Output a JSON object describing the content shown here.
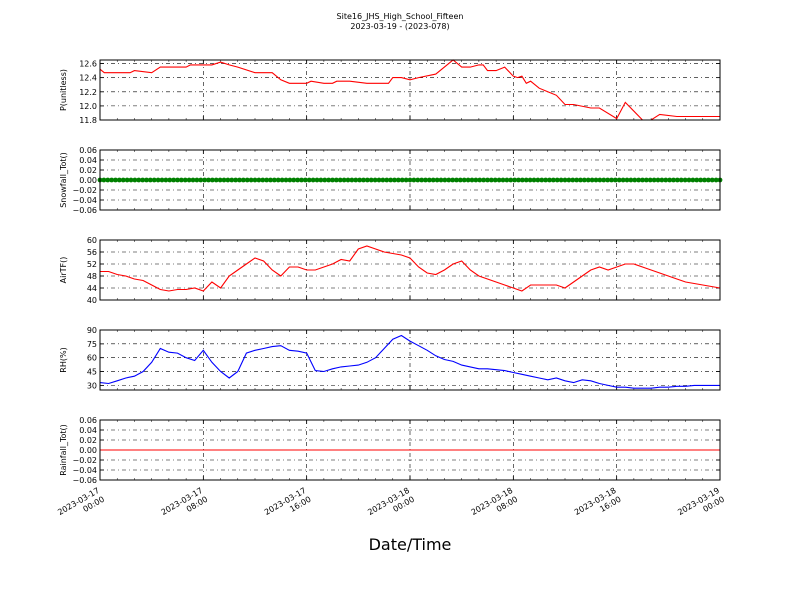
{
  "figure": {
    "title_line1": "Site16_JHS_High_School_Fifteen",
    "title_line2": "2023-03-19 - (2023-078)",
    "xlabel": "Date/Time"
  },
  "colors": {
    "red": "#ff0000",
    "green": "#008000",
    "blue": "#0000ff",
    "axis": "#000000"
  },
  "chart_data": [
    {
      "type": "line",
      "ylabel": "P(unitless)",
      "color": "#ff0000",
      "ylim": [
        11.8,
        12.65
      ],
      "yticks": [
        11.8,
        12.0,
        12.2,
        12.4,
        12.6
      ],
      "ytick_labels": [
        "11.8",
        "12.0",
        "12.2",
        "12.4",
        "12.6"
      ],
      "x": [
        0,
        0.5,
        3.5,
        4,
        6,
        7,
        10,
        10.5,
        11.5,
        12,
        13,
        14,
        15,
        16,
        18,
        20,
        21,
        22,
        24,
        24.5,
        26,
        27,
        27.5,
        28,
        29,
        31,
        32,
        33.5,
        34,
        35,
        36,
        37,
        39,
        40,
        41,
        42,
        43,
        44,
        44.5,
        45,
        46,
        47,
        48,
        48.5,
        49,
        49.5,
        50,
        51,
        52,
        53,
        54,
        55,
        57,
        58,
        60,
        61,
        63,
        64,
        65,
        67,
        68,
        69,
        70,
        71,
        72
      ],
      "y": [
        12.52,
        12.47,
        12.47,
        12.5,
        12.47,
        12.55,
        12.55,
        12.58,
        12.58,
        12.58,
        12.58,
        12.62,
        12.58,
        12.55,
        12.47,
        12.47,
        12.37,
        12.32,
        12.32,
        12.35,
        12.32,
        12.32,
        12.35,
        12.35,
        12.35,
        12.32,
        12.32,
        12.32,
        12.4,
        12.4,
        12.37,
        12.4,
        12.45,
        12.55,
        12.65,
        12.55,
        12.55,
        12.58,
        12.58,
        12.5,
        12.5,
        12.55,
        12.42,
        12.4,
        12.42,
        12.32,
        12.35,
        12.25,
        12.2,
        12.15,
        12.02,
        12.02,
        11.97,
        11.97,
        11.82,
        12.05,
        11.8,
        11.8,
        11.88,
        11.85,
        11.85,
        11.85,
        11.85,
        11.85,
        11.85
      ]
    },
    {
      "type": "line",
      "ylabel": "Snowfall_Tot()",
      "color": "#008000",
      "marker": "dot",
      "ylim": [
        -0.06,
        0.06
      ],
      "yticks": [
        -0.06,
        -0.04,
        -0.02,
        0.0,
        0.02,
        0.04,
        0.06
      ],
      "ytick_labels": [
        "−0.06",
        "−0.04",
        "−0.02",
        "0.00",
        "0.02",
        "0.04",
        "0.06"
      ],
      "x": [
        0,
        72
      ],
      "y": [
        0,
        0
      ]
    },
    {
      "type": "line",
      "ylabel": "AirTF()",
      "color": "#ff0000",
      "ylim": [
        40,
        60
      ],
      "yticks": [
        40,
        44,
        48,
        52,
        56,
        60
      ],
      "ytick_labels": [
        "40",
        "44",
        "48",
        "52",
        "56",
        "60"
      ],
      "x": [
        0,
        1,
        2,
        3,
        4,
        5,
        6,
        7,
        8,
        9,
        10,
        11,
        12,
        13,
        14,
        15,
        16,
        17,
        18,
        19,
        20,
        21,
        22,
        23,
        24,
        25,
        26,
        27,
        28,
        29,
        30,
        31,
        32,
        33,
        34,
        35,
        36,
        37,
        38,
        39,
        40,
        41,
        42,
        43,
        44,
        45,
        46,
        47,
        48,
        49,
        50,
        51,
        52,
        53,
        54,
        55,
        56,
        57,
        58,
        59,
        60,
        61,
        62,
        63,
        64,
        65,
        66,
        67,
        68,
        69,
        70,
        71,
        72
      ],
      "y": [
        49.5,
        49.5,
        48.5,
        48,
        47,
        46.5,
        45,
        43.5,
        43,
        43.5,
        43.5,
        44,
        43,
        46,
        44,
        48,
        50,
        52,
        54,
        53,
        50,
        48,
        51,
        51,
        50,
        50,
        51,
        52,
        53.5,
        53,
        57,
        58,
        57,
        56,
        55.5,
        55,
        54,
        51,
        49,
        48.5,
        50,
        52,
        53,
        50,
        48,
        47,
        46,
        45,
        44,
        43,
        45,
        45,
        45,
        45,
        44,
        46,
        48,
        50,
        51,
        50,
        51,
        52,
        52,
        51,
        50,
        49,
        48,
        47,
        46,
        45.5,
        45,
        44.5,
        44
      ]
    },
    {
      "type": "line",
      "ylabel": "RH(%)",
      "color": "#0000ff",
      "ylim": [
        25,
        90
      ],
      "yticks": [
        30,
        45,
        60,
        75,
        90
      ],
      "ytick_labels": [
        "30",
        "45",
        "60",
        "75",
        "90"
      ],
      "x": [
        0,
        1,
        2,
        3,
        4,
        5,
        6,
        7,
        8,
        9,
        10,
        11,
        12,
        13,
        14,
        15,
        16,
        17,
        18,
        19,
        20,
        21,
        22,
        23,
        24,
        25,
        26,
        27,
        28,
        29,
        30,
        31,
        32,
        33,
        34,
        35,
        36,
        37,
        38,
        39,
        40,
        41,
        42,
        43,
        44,
        45,
        46,
        47,
        48,
        49,
        50,
        51,
        52,
        53,
        54,
        55,
        56,
        57,
        58,
        59,
        60,
        61,
        62,
        63,
        64,
        65,
        66,
        67,
        68,
        69,
        70,
        71,
        72
      ],
      "y": [
        33,
        32,
        35,
        38,
        40,
        45,
        55,
        70,
        66,
        65,
        60,
        57,
        68,
        55,
        45,
        38,
        45,
        65,
        68,
        70,
        72,
        73,
        68,
        67,
        65,
        46,
        45,
        48,
        50,
        51,
        52,
        55,
        60,
        70,
        80,
        84,
        78,
        73,
        68,
        62,
        58,
        56,
        52,
        50,
        48,
        48,
        47,
        46,
        44,
        42,
        40,
        38,
        36,
        38,
        35,
        33,
        36,
        35,
        32,
        30,
        28,
        28,
        27,
        27,
        27,
        28,
        28,
        29,
        29,
        30,
        30,
        30,
        30
      ]
    },
    {
      "type": "line",
      "ylabel": "Rainfall_Tot()",
      "color": "#ff0000",
      "ylim": [
        -0.06,
        0.06
      ],
      "yticks": [
        -0.06,
        -0.04,
        -0.02,
        0.0,
        0.02,
        0.04,
        0.06
      ],
      "ytick_labels": [
        "−0.06",
        "−0.04",
        "−0.02",
        "0.00",
        "0.02",
        "0.04",
        "0.06"
      ],
      "x": [
        0,
        72
      ],
      "y": [
        0,
        0
      ]
    }
  ],
  "x_axis": {
    "range": [
      0,
      72
    ],
    "ticks": [
      0,
      12,
      24,
      36,
      48,
      60,
      72
    ],
    "tick_labels": [
      [
        "2023-03-17",
        "00:00"
      ],
      [
        "2023-03-17",
        "08:00"
      ],
      [
        "2023-03-17",
        "16:00"
      ],
      [
        "2023-03-18",
        "00:00"
      ],
      [
        "2023-03-18",
        "08:00"
      ],
      [
        "2023-03-18",
        "16:00"
      ],
      [
        "2023-03-19",
        "00:00"
      ]
    ]
  }
}
